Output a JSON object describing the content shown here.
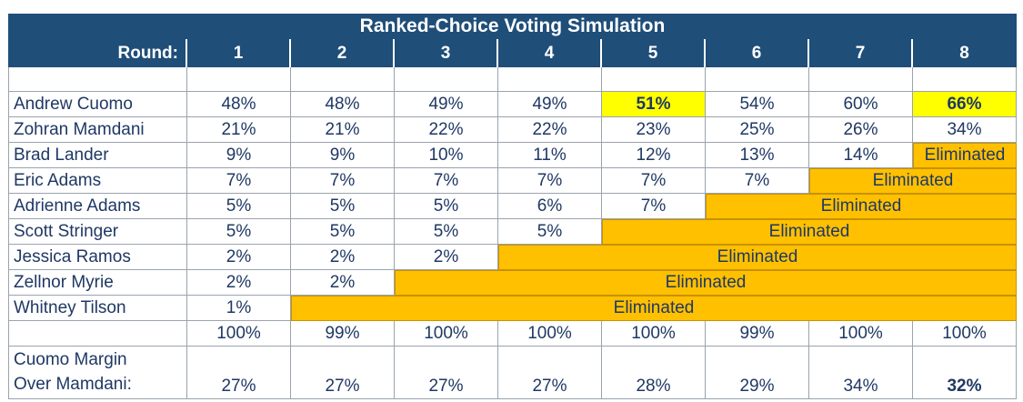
{
  "table": {
    "title": "Ranked-Choice Voting Simulation",
    "round_label": "Round:",
    "rounds": [
      "1",
      "2",
      "3",
      "4",
      "5",
      "6",
      "7",
      "8"
    ],
    "eliminated_label": "Eliminated",
    "candidates": [
      {
        "name": "Andrew Cuomo",
        "values": [
          "48%",
          "48%",
          "49%",
          "49%",
          "51%",
          "54%",
          "60%",
          "66%"
        ],
        "highlight": [
          4,
          7
        ]
      },
      {
        "name": "Zohran Mamdani",
        "values": [
          "21%",
          "21%",
          "22%",
          "22%",
          "23%",
          "25%",
          "26%",
          "34%"
        ],
        "highlight": []
      },
      {
        "name": "Brad Lander",
        "values": [
          "9%",
          "9%",
          "10%",
          "11%",
          "12%",
          "13%",
          "14%"
        ],
        "highlight": []
      },
      {
        "name": "Eric Adams",
        "values": [
          "7%",
          "7%",
          "7%",
          "7%",
          "7%",
          "7%"
        ],
        "highlight": []
      },
      {
        "name": "Adrienne Adams",
        "values": [
          "5%",
          "5%",
          "5%",
          "6%",
          "7%"
        ],
        "highlight": []
      },
      {
        "name": "Scott Stringer",
        "values": [
          "5%",
          "5%",
          "5%",
          "5%"
        ],
        "highlight": []
      },
      {
        "name": "Jessica Ramos",
        "values": [
          "2%",
          "2%",
          "2%"
        ],
        "highlight": []
      },
      {
        "name": "Zellnor Myrie",
        "values": [
          "2%",
          "2%"
        ],
        "highlight": []
      },
      {
        "name": "Whitney Tilson",
        "values": [
          "1%"
        ],
        "highlight": []
      }
    ],
    "totals": [
      "100%",
      "99%",
      "100%",
      "100%",
      "100%",
      "99%",
      "100%",
      "100%"
    ],
    "margin_label_line1": "Cuomo Margin",
    "margin_label_line2": "Over Mamdani:",
    "margin_values": [
      "27%",
      "27%",
      "27%",
      "27%",
      "28%",
      "29%",
      "34%",
      "32%"
    ],
    "margin_bold_index": 7
  },
  "chart_data": {
    "type": "table",
    "title": "Ranked-Choice Voting Simulation",
    "columns": [
      "Round:",
      "1",
      "2",
      "3",
      "4",
      "5",
      "6",
      "7",
      "8"
    ],
    "series": [
      {
        "name": "Andrew Cuomo",
        "values": [
          48,
          48,
          49,
          49,
          51,
          54,
          60,
          66
        ]
      },
      {
        "name": "Zohran Mamdani",
        "values": [
          21,
          21,
          22,
          22,
          23,
          25,
          26,
          34
        ]
      },
      {
        "name": "Brad Lander",
        "values": [
          9,
          9,
          10,
          11,
          12,
          13,
          14,
          null
        ]
      },
      {
        "name": "Eric Adams",
        "values": [
          7,
          7,
          7,
          7,
          7,
          7,
          null,
          null
        ]
      },
      {
        "name": "Adrienne Adams",
        "values": [
          5,
          5,
          5,
          6,
          7,
          null,
          null,
          null
        ]
      },
      {
        "name": "Scott Stringer",
        "values": [
          5,
          5,
          5,
          5,
          null,
          null,
          null,
          null
        ]
      },
      {
        "name": "Jessica Ramos",
        "values": [
          2,
          2,
          2,
          null,
          null,
          null,
          null,
          null
        ]
      },
      {
        "name": "Zellnor Myrie",
        "values": [
          2,
          2,
          null,
          null,
          null,
          null,
          null,
          null
        ]
      },
      {
        "name": "Whitney Tilson",
        "values": [
          1,
          null,
          null,
          null,
          null,
          null,
          null,
          null
        ]
      }
    ],
    "totals": [
      100,
      99,
      100,
      100,
      100,
      99,
      100,
      100
    ],
    "cuomo_margin_over_mamdani": [
      27,
      27,
      27,
      27,
      28,
      29,
      34,
      32
    ],
    "colors": {
      "header": "#1f4e79",
      "eliminated": "#ffc000",
      "highlight": "#ffff00",
      "text": "#1f3864"
    }
  }
}
